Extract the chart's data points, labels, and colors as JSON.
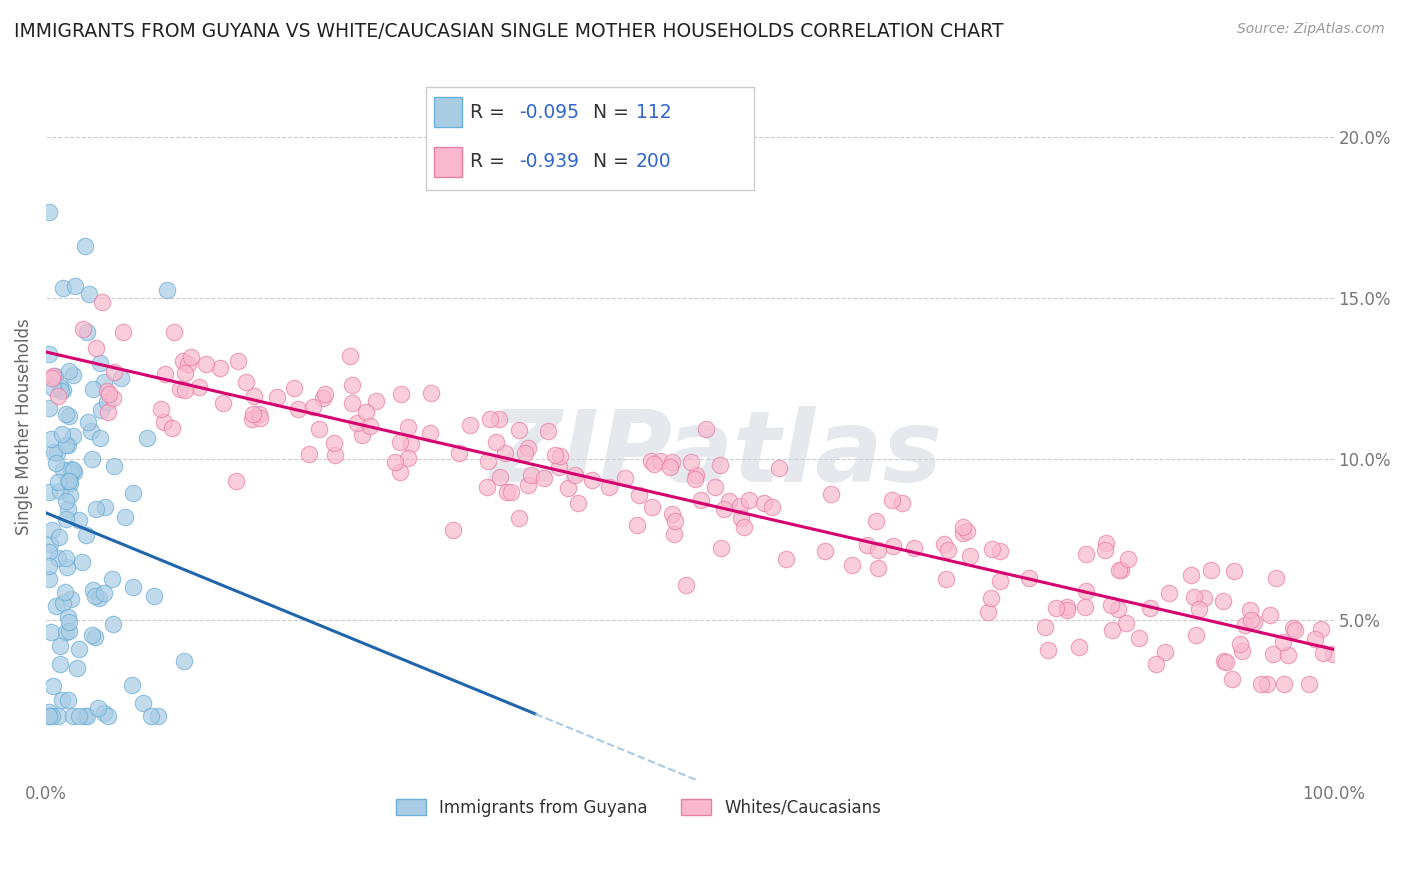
{
  "title": "IMMIGRANTS FROM GUYANA VS WHITE/CAUCASIAN SINGLE MOTHER HOUSEHOLDS CORRELATION CHART",
  "source": "Source: ZipAtlas.com",
  "ylabel": "Single Mother Households",
  "blue_label": "Immigrants from Guyana",
  "pink_label": "Whites/Caucasians",
  "blue_R": -0.095,
  "blue_N": 112,
  "pink_R": -0.939,
  "pink_N": 200,
  "blue_color": "#a8cce4",
  "blue_edge_color": "#6baed6",
  "pink_color": "#f9b8cd",
  "pink_edge_color": "#e87fa8",
  "blue_line_color": "#2166ac",
  "blue_dash_color": "#a8cce4",
  "pink_line_color": "#d6006e",
  "watermark": "ZIPatlas",
  "legend_R_N_color": "#3366cc",
  "xlim": [
    0.0,
    1.0
  ],
  "ylim": [
    0.0,
    0.22
  ],
  "background_color": "#ffffff",
  "grid_color": "#cccccc"
}
